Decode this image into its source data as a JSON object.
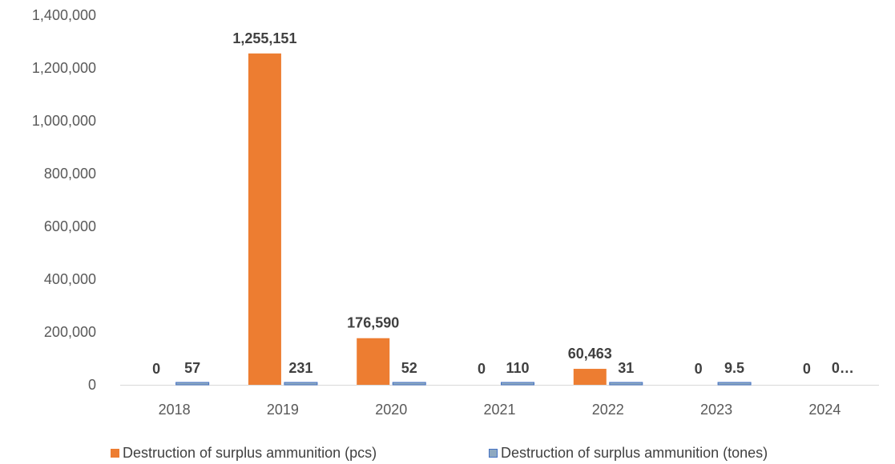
{
  "chart_data": {
    "type": "bar",
    "categories": [
      "2018",
      "2019",
      "2020",
      "2021",
      "2022",
      "2023",
      "2024"
    ],
    "series": [
      {
        "name": "Destruction of surplus ammunition (pcs)",
        "values": [
          0,
          1255151,
          176590,
          0,
          60463,
          0,
          0
        ],
        "labels": [
          "0",
          "1,255,151",
          "176,590",
          "0",
          "60,463",
          "0",
          "0"
        ],
        "color": "#ED7D31"
      },
      {
        "name": "Destruction of surplus ammunition (tones)",
        "values": [
          57,
          231,
          52,
          110,
          31,
          9.5,
          0
        ],
        "labels": [
          "57",
          "231",
          "52",
          "110",
          "31",
          "9.5",
          "0…"
        ],
        "color": "#8EA9C1",
        "border": "#4472C4"
      }
    ],
    "ylim": [
      0,
      1400000
    ],
    "yticks": [
      0,
      200000,
      400000,
      600000,
      800000,
      1000000,
      1200000,
      1400000
    ],
    "ytick_labels": [
      "0",
      "200,000",
      "400,000",
      "600,000",
      "800,000",
      "1,000,000",
      "1,200,000",
      "1,400,000"
    ],
    "title": "",
    "xlabel": "",
    "ylabel": "",
    "grid": false,
    "legend_position": "bottom"
  }
}
